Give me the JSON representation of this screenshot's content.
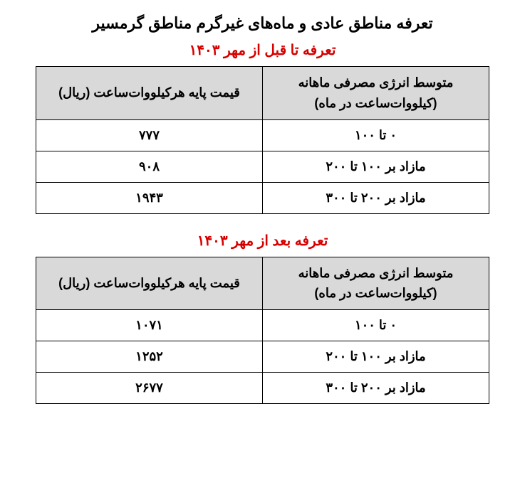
{
  "main_title": "تعرفه مناطق عادی و ماه‌های غیرگرم مناطق گرمسیر",
  "colors": {
    "title_red": "#d60000",
    "header_bg": "#d9d9d9",
    "cell_bg": "#ffffff",
    "text": "#000000",
    "border": "#000000"
  },
  "typography": {
    "main_title_fontsize": 22,
    "sub_title_fontsize": 20,
    "cell_fontsize": 18,
    "font_weight": "bold"
  },
  "tables": [
    {
      "subtitle": "تعرفه تا قبل از مهر ۱۴۰۳",
      "subtitle_color": "#d60000",
      "columns": [
        "متوسط انرژی مصرفی ماهانه (کیلووات‌ساعت در ماه)",
        "قیمت پایه هرکیلووات‌ساعت (ریال)"
      ],
      "rows": [
        [
          "۰ تا ۱۰۰",
          "۷۷۷"
        ],
        [
          "مازاد بر ۱۰۰ تا ۲۰۰",
          "۹۰۸"
        ],
        [
          "مازاد بر ۲۰۰ تا ۳۰۰",
          "۱۹۴۳"
        ]
      ]
    },
    {
      "subtitle": "تعرفه بعد از مهر ۱۴۰۳",
      "subtitle_color": "#d60000",
      "columns": [
        "متوسط انرژی مصرفی ماهانه (کیلووات‌ساعت در ماه)",
        "قیمت پایه هرکیلووات‌ساعت (ریال)"
      ],
      "rows": [
        [
          "۰ تا ۱۰۰",
          "۱۰۷۱"
        ],
        [
          "مازاد بر ۱۰۰ تا ۲۰۰",
          "۱۲۵۲"
        ],
        [
          "مازاد بر ۲۰۰ تا ۳۰۰",
          "۲۶۷۷"
        ]
      ]
    }
  ]
}
